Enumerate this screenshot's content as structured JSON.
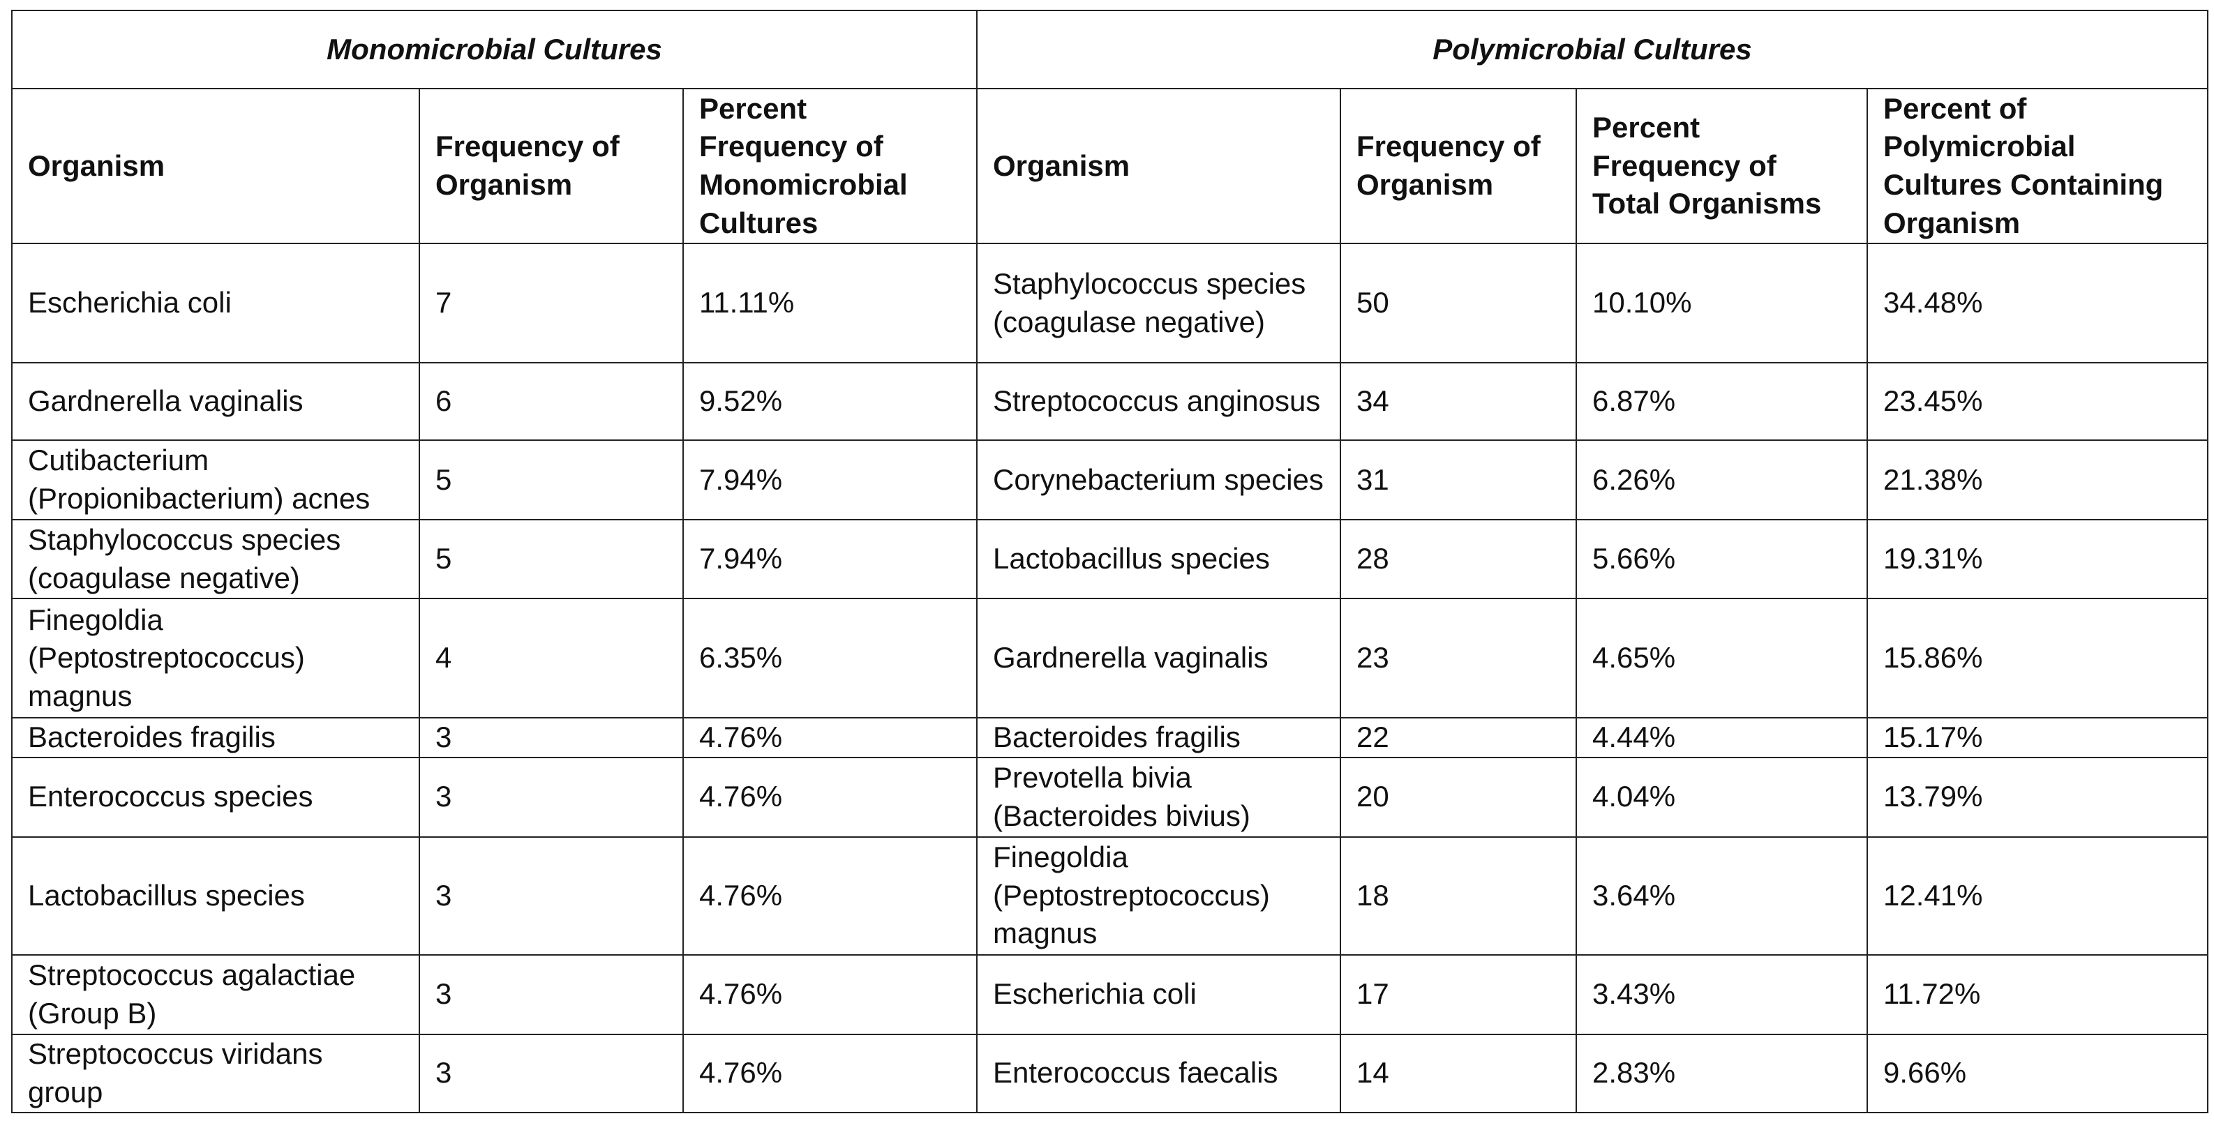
{
  "table": {
    "groups": [
      "Monomicrobial Cultures",
      "Polymicrobial Cultures"
    ],
    "columns": [
      "Organism",
      "Frequency of Organism",
      "Percent Frequency of Monomicrobial Cultures",
      "Organism",
      "Frequency of Organism",
      "Percent Frequency of Total Organisms",
      "Percent of Polymicrobial Cultures Containing Organism"
    ],
    "rows": [
      [
        "Escherichia coli",
        "7",
        "11.11%",
        "Staphylococcus species (coagulase negative)",
        "50",
        "10.10%",
        "34.48%"
      ],
      [
        "Gardnerella vaginalis",
        "6",
        "9.52%",
        "Streptococcus anginosus",
        "34",
        "6.87%",
        "23.45%"
      ],
      [
        "Cutibacterium (Propionibacterium) acnes",
        "5",
        "7.94%",
        "Corynebacterium species",
        "31",
        "6.26%",
        "21.38%"
      ],
      [
        "Staphylococcus species (coagulase negative)",
        "5",
        "7.94%",
        "Lactobacillus species",
        "28",
        "5.66%",
        "19.31%"
      ],
      [
        "Finegoldia (Peptostreptococcus) magnus",
        "4",
        "6.35%",
        "Gardnerella vaginalis",
        "23",
        "4.65%",
        "15.86%"
      ],
      [
        "Bacteroides fragilis",
        "3",
        "4.76%",
        "Bacteroides fragilis",
        "22",
        "4.44%",
        "15.17%"
      ],
      [
        "Enterococcus species",
        "3",
        "4.76%",
        "Prevotella bivia (Bacteroides bivius)",
        "20",
        "4.04%",
        "13.79%"
      ],
      [
        "Lactobacillus species",
        "3",
        "4.76%",
        "Finegoldia (Peptostreptococcus) magnus",
        "18",
        "3.64%",
        "12.41%"
      ],
      [
        "Streptococcus agalactiae (Group B)",
        "3",
        "4.76%",
        "Escherichia coli",
        "17",
        "3.43%",
        "11.72%"
      ],
      [
        "Streptococcus viridans group",
        "3",
        "4.76%",
        "Enterococcus faecalis",
        "14",
        "2.83%",
        "9.66%"
      ]
    ]
  }
}
